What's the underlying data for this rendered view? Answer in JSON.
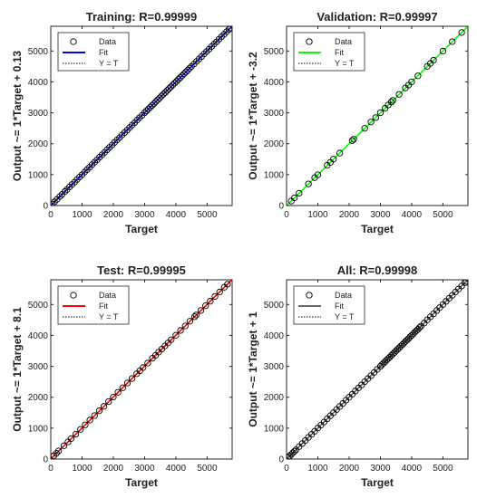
{
  "chart_data": [
    {
      "type": "scatter",
      "title": "Training: R=0.99999",
      "xlabel": "Target",
      "ylabel": "Output ~= 1*Target + 0.13",
      "xlim": [
        0,
        5800
      ],
      "ylim": [
        0,
        5800
      ],
      "xticks": [
        0,
        1000,
        2000,
        3000,
        4000,
        5000
      ],
      "yticks": [
        0,
        1000,
        2000,
        3000,
        4000,
        5000
      ],
      "fit": {
        "slope": 1,
        "intercept": 0.13,
        "color": "#0000ff"
      },
      "data_color": "#000000",
      "legend": {
        "position": "top-left",
        "entries": [
          "Data",
          "Fit",
          "Y = T"
        ]
      },
      "points": [
        [
          50,
          50
        ],
        [
          120,
          122
        ],
        [
          200,
          199
        ],
        [
          290,
          292
        ],
        [
          360,
          361
        ],
        [
          450,
          452
        ],
        [
          520,
          519
        ],
        [
          600,
          602
        ],
        [
          680,
          681
        ],
        [
          760,
          758
        ],
        [
          840,
          843
        ],
        [
          920,
          921
        ],
        [
          1000,
          998
        ],
        [
          1080,
          1082
        ],
        [
          1160,
          1161
        ],
        [
          1240,
          1238
        ],
        [
          1320,
          1322
        ],
        [
          1400,
          1401
        ],
        [
          1480,
          1478
        ],
        [
          1560,
          1563
        ],
        [
          1640,
          1641
        ],
        [
          1720,
          1718
        ],
        [
          1800,
          1802
        ],
        [
          1880,
          1881
        ],
        [
          1960,
          1958
        ],
        [
          2040,
          2043
        ],
        [
          2120,
          2121
        ],
        [
          2200,
          2198
        ],
        [
          2280,
          2282
        ],
        [
          2360,
          2361
        ],
        [
          2440,
          2438
        ],
        [
          2520,
          2523
        ],
        [
          2600,
          2601
        ],
        [
          2680,
          2678
        ],
        [
          2760,
          2762
        ],
        [
          2840,
          2841
        ],
        [
          2920,
          2918
        ],
        [
          3000,
          3003
        ],
        [
          3060,
          3061
        ],
        [
          3120,
          3118
        ],
        [
          3180,
          3182
        ],
        [
          3240,
          3241
        ],
        [
          3300,
          3298
        ],
        [
          3360,
          3363
        ],
        [
          3420,
          3421
        ],
        [
          3480,
          3478
        ],
        [
          3540,
          3542
        ],
        [
          3600,
          3601
        ],
        [
          3660,
          3658
        ],
        [
          3720,
          3723
        ],
        [
          3780,
          3781
        ],
        [
          3840,
          3838
        ],
        [
          3900,
          3902
        ],
        [
          3960,
          3961
        ],
        [
          4020,
          4018
        ],
        [
          4080,
          4083
        ],
        [
          4140,
          4141
        ],
        [
          4200,
          4198
        ],
        [
          4260,
          4262
        ],
        [
          4320,
          4321
        ],
        [
          4380,
          4378
        ],
        [
          4440,
          4443
        ],
        [
          4500,
          4501
        ],
        [
          4580,
          4578
        ],
        [
          4660,
          4662
        ],
        [
          4740,
          4741
        ],
        [
          4820,
          4818
        ],
        [
          4900,
          4903
        ],
        [
          4980,
          4981
        ],
        [
          5060,
          5058
        ],
        [
          5140,
          5142
        ],
        [
          5220,
          5221
        ],
        [
          5300,
          5298
        ],
        [
          5380,
          5383
        ],
        [
          5460,
          5461
        ],
        [
          5540,
          5538
        ],
        [
          5620,
          5622
        ],
        [
          5700,
          5701
        ],
        [
          5750,
          5749
        ]
      ]
    },
    {
      "type": "scatter",
      "title": "Validation: R=0.99997",
      "xlabel": "Target",
      "ylabel": "Output ~= 1*Target + -3.2",
      "xlim": [
        0,
        5800
      ],
      "ylim": [
        0,
        5800
      ],
      "xticks": [
        0,
        1000,
        2000,
        3000,
        4000,
        5000
      ],
      "yticks": [
        0,
        1000,
        2000,
        3000,
        4000,
        5000
      ],
      "fit": {
        "slope": 1,
        "intercept": -3.2,
        "color": "#00ff00"
      },
      "data_color": "#000000",
      "legend": {
        "position": "top-left",
        "entries": [
          "Data",
          "Fit",
          "Y = T"
        ]
      },
      "points": [
        [
          150,
          145
        ],
        [
          250,
          248
        ],
        [
          400,
          396
        ],
        [
          700,
          698
        ],
        [
          900,
          903
        ],
        [
          1000,
          996
        ],
        [
          1300,
          1302
        ],
        [
          1400,
          1395
        ],
        [
          1500,
          1502
        ],
        [
          1700,
          1697
        ],
        [
          2100,
          2102
        ],
        [
          2150,
          2146
        ],
        [
          2500,
          2498
        ],
        [
          2700,
          2703
        ],
        [
          2850,
          2845
        ],
        [
          3000,
          3002
        ],
        [
          3150,
          3146
        ],
        [
          3250,
          3252
        ],
        [
          3350,
          3347
        ],
        [
          3400,
          3402
        ],
        [
          3600,
          3596
        ],
        [
          3800,
          3803
        ],
        [
          3900,
          3897
        ],
        [
          4000,
          4002
        ],
        [
          4200,
          4196
        ],
        [
          4500,
          4503
        ],
        [
          4600,
          4597
        ],
        [
          4700,
          4701
        ],
        [
          5000,
          4996
        ],
        [
          5300,
          5302
        ],
        [
          5600,
          5597
        ]
      ]
    },
    {
      "type": "scatter",
      "title": "Test: R=0.99995",
      "xlabel": "Target",
      "ylabel": "Output ~= 1*Target + 8.1",
      "xlim": [
        0,
        5800
      ],
      "ylim": [
        0,
        5800
      ],
      "xticks": [
        0,
        1000,
        2000,
        3000,
        4000,
        5000
      ],
      "yticks": [
        0,
        1000,
        2000,
        3000,
        4000,
        5000
      ],
      "fit": {
        "slope": 1,
        "intercept": 8.1,
        "color": "#ff0000"
      },
      "data_color": "#000000",
      "legend": {
        "position": "top-left",
        "entries": [
          "Data",
          "Fit",
          "Y = T"
        ]
      },
      "points": [
        [
          100,
          108
        ],
        [
          180,
          186
        ],
        [
          250,
          262
        ],
        [
          420,
          430
        ],
        [
          550,
          556
        ],
        [
          650,
          661
        ],
        [
          800,
          806
        ],
        [
          950,
          960
        ],
        [
          1100,
          1106
        ],
        [
          1250,
          1261
        ],
        [
          1400,
          1406
        ],
        [
          1550,
          1561
        ],
        [
          1700,
          1706
        ],
        [
          1850,
          1860
        ],
        [
          2000,
          2006
        ],
        [
          2150,
          2161
        ],
        [
          2300,
          2306
        ],
        [
          2450,
          2460
        ],
        [
          2600,
          2606
        ],
        [
          2750,
          2761
        ],
        [
          2850,
          2856
        ],
        [
          2950,
          2960
        ],
        [
          3100,
          3106
        ],
        [
          3250,
          3261
        ],
        [
          3350,
          3356
        ],
        [
          3450,
          3460
        ],
        [
          3550,
          3556
        ],
        [
          3650,
          3661
        ],
        [
          3750,
          3756
        ],
        [
          3850,
          3860
        ],
        [
          4000,
          4006
        ],
        [
          4150,
          4161
        ],
        [
          4300,
          4306
        ],
        [
          4450,
          4460
        ],
        [
          4600,
          4606
        ],
        [
          4650,
          4661
        ],
        [
          4800,
          4806
        ],
        [
          4950,
          4960
        ],
        [
          5100,
          5106
        ],
        [
          5250,
          5261
        ],
        [
          5400,
          5406
        ],
        [
          5550,
          5560
        ],
        [
          5650,
          5656
        ]
      ]
    },
    {
      "type": "scatter",
      "title": "All: R=0.99998",
      "xlabel": "Target",
      "ylabel": "Output ~= 1*Target + 1",
      "xlim": [
        0,
        5800
      ],
      "ylim": [
        0,
        5800
      ],
      "xticks": [
        0,
        1000,
        2000,
        3000,
        4000,
        5000
      ],
      "yticks": [
        0,
        1000,
        2000,
        3000,
        4000,
        5000
      ],
      "fit": {
        "slope": 1,
        "intercept": 1,
        "color": "#666666"
      },
      "data_color": "#000000",
      "legend": {
        "position": "top-left",
        "entries": [
          "Data",
          "Fit",
          "Y = T"
        ]
      },
      "points": [
        [
          50,
          51
        ],
        [
          100,
          102
        ],
        [
          150,
          149
        ],
        [
          200,
          203
        ],
        [
          250,
          251
        ],
        [
          300,
          299
        ],
        [
          400,
          402
        ],
        [
          500,
          501
        ],
        [
          600,
          598
        ],
        [
          700,
          703
        ],
        [
          800,
          801
        ],
        [
          900,
          899
        ],
        [
          1000,
          1002
        ],
        [
          1100,
          1101
        ],
        [
          1200,
          1198
        ],
        [
          1300,
          1303
        ],
        [
          1400,
          1401
        ],
        [
          1500,
          1499
        ],
        [
          1600,
          1602
        ],
        [
          1700,
          1701
        ],
        [
          1800,
          1798
        ],
        [
          1900,
          1903
        ],
        [
          2000,
          2001
        ],
        [
          2100,
          2099
        ],
        [
          2200,
          2202
        ],
        [
          2300,
          2301
        ],
        [
          2400,
          2398
        ],
        [
          2500,
          2503
        ],
        [
          2600,
          2601
        ],
        [
          2700,
          2699
        ],
        [
          2800,
          2802
        ],
        [
          2900,
          2901
        ],
        [
          3000,
          2998
        ],
        [
          3050,
          3053
        ],
        [
          3100,
          3101
        ],
        [
          3150,
          3149
        ],
        [
          3200,
          3202
        ],
        [
          3250,
          3251
        ],
        [
          3300,
          3298
        ],
        [
          3350,
          3353
        ],
        [
          3400,
          3401
        ],
        [
          3450,
          3449
        ],
        [
          3500,
          3502
        ],
        [
          3550,
          3551
        ],
        [
          3600,
          3598
        ],
        [
          3650,
          3653
        ],
        [
          3700,
          3701
        ],
        [
          3750,
          3749
        ],
        [
          3800,
          3802
        ],
        [
          3850,
          3851
        ],
        [
          3900,
          3898
        ],
        [
          3950,
          3953
        ],
        [
          4000,
          4001
        ],
        [
          4050,
          4049
        ],
        [
          4100,
          4102
        ],
        [
          4150,
          4151
        ],
        [
          4200,
          4198
        ],
        [
          4250,
          4253
        ],
        [
          4300,
          4301
        ],
        [
          4400,
          4399
        ],
        [
          4500,
          4502
        ],
        [
          4600,
          4601
        ],
        [
          4700,
          4698
        ],
        [
          4800,
          4803
        ],
        [
          4900,
          4901
        ],
        [
          5000,
          4999
        ],
        [
          5100,
          5102
        ],
        [
          5200,
          5201
        ],
        [
          5300,
          5298
        ],
        [
          5400,
          5403
        ],
        [
          5500,
          5501
        ],
        [
          5600,
          5599
        ],
        [
          5700,
          5702
        ],
        [
          5750,
          5751
        ]
      ]
    }
  ]
}
